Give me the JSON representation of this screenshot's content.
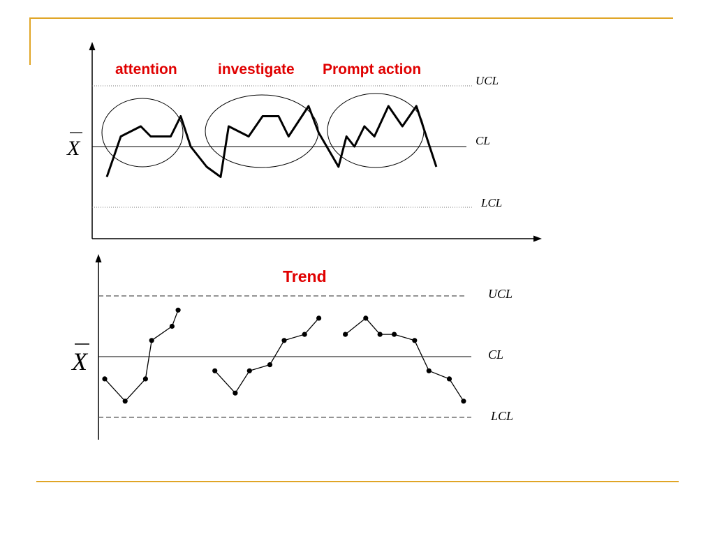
{
  "slide": {
    "accent_color": "#e0a526",
    "label_color": "#e00000"
  },
  "chart_data": [
    {
      "type": "line",
      "symbol": "X",
      "limit_labels": {
        "ucl": "UCL",
        "cl": "CL",
        "lcl": "LCL"
      },
      "limits": {
        "ucl": 3,
        "cl": 0,
        "lcl": -3
      },
      "ylim": [
        -4.5,
        5
      ],
      "annotations": [
        {
          "text": "attention",
          "x_range": [
            1,
            4.5
          ]
        },
        {
          "text": "investigate",
          "x_range": [
            6,
            11.5
          ]
        },
        {
          "text": "Prompt action",
          "x_range": [
            12,
            16
          ]
        }
      ],
      "x": [
        0,
        0.7,
        1.7,
        2.2,
        3.2,
        3.7,
        4.2,
        5,
        5.7,
        6.1,
        7.1,
        7.8,
        8.6,
        9.1,
        10.1,
        10.6,
        11.6,
        12,
        12.4,
        12.9,
        13.4,
        14.1,
        14.8,
        15.5,
        16.5
      ],
      "values": [
        -1.5,
        0.5,
        1,
        0.5,
        0.5,
        1.5,
        0,
        -1,
        -1.5,
        1,
        0.5,
        1.5,
        1.5,
        0.5,
        2,
        0.7,
        -1,
        0.5,
        0,
        1,
        0.5,
        2,
        1,
        2,
        -1
      ]
    },
    {
      "type": "line",
      "title": "Trend",
      "symbol": "X",
      "limit_labels": {
        "ucl": "UCL",
        "cl": "CL",
        "lcl": "LCL"
      },
      "limits": {
        "ucl": 3,
        "cl": 0,
        "lcl": -3
      },
      "ylim": [
        -4,
        4
      ],
      "series": [
        {
          "x": [
            0,
            1,
            2,
            2.3,
            3.3,
            3.6
          ],
          "values": [
            -1.1,
            -2.2,
            -1.1,
            0.8,
            1.5,
            2.3
          ],
          "markers": true
        },
        {
          "x": [
            5.4,
            6.4,
            7.1,
            8.1,
            8.8,
            9.8,
            10.5
          ],
          "values": [
            -0.7,
            -1.8,
            -0.7,
            -0.4,
            0.8,
            1.1,
            1.9
          ],
          "markers": true
        },
        {
          "x": [
            11.8,
            12.8,
            13.5,
            14.2,
            15.2,
            15.9,
            16.9,
            17.6
          ],
          "values": [
            1.1,
            1.9,
            1.1,
            1.1,
            0.8,
            -0.7,
            -1.1,
            -2.2
          ],
          "markers": true
        }
      ]
    }
  ]
}
